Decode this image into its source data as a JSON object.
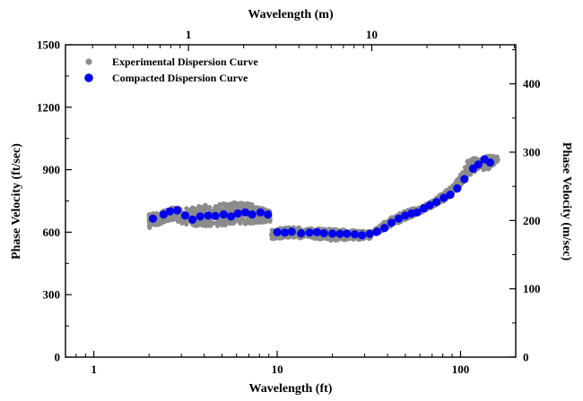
{
  "chart_data": {
    "type": "scatter",
    "x_scale": "log",
    "x_axis_bottom": {
      "label": "Wavelength (ft)",
      "range": [
        0.7,
        200
      ],
      "ticks": [
        1,
        10,
        100
      ],
      "tick_labels": [
        "1",
        "10",
        "100"
      ]
    },
    "x_axis_top": {
      "label": "Wavelength (m)",
      "ticks": [
        1,
        10
      ],
      "tick_labels": [
        "1",
        "10"
      ]
    },
    "y_axis_left": {
      "label": "Phase Velocity (ft/sec)",
      "range": [
        0,
        1500
      ],
      "ticks": [
        0,
        300,
        600,
        900,
        1200,
        1500
      ],
      "tick_labels": [
        "0",
        "300",
        "600",
        "900",
        "1200",
        "1500"
      ]
    },
    "y_axis_right": {
      "label": "Phase Velocity (m/sec)",
      "ticks": [
        0,
        100,
        200,
        300,
        400
      ],
      "tick_labels": [
        "0",
        "100",
        "200",
        "300",
        "400"
      ]
    },
    "grid": false,
    "legend_position": "top-left",
    "series": [
      {
        "name": "Experimental Dispersion Curve",
        "color": "#8c8c8c",
        "marker": "circle-small",
        "segments": [
          {
            "x_range": [
              2.0,
              9.2
            ],
            "band": [
              [
                2.0,
                620,
                690
              ],
              [
                2.3,
                640,
                700
              ],
              [
                2.7,
                660,
                720
              ],
              [
                3.0,
                640,
                720
              ],
              [
                3.5,
                630,
                720
              ],
              [
                4.0,
                630,
                730
              ],
              [
                5.0,
                630,
                740
              ],
              [
                6.0,
                640,
                745
              ],
              [
                7.0,
                640,
                740
              ],
              [
                8.0,
                645,
                720
              ],
              [
                9.2,
                650,
                700
              ]
            ]
          },
          {
            "x_range": [
              9.3,
              33
            ],
            "band": [
              [
                9.3,
                560,
                610
              ],
              [
                10,
                570,
                620
              ],
              [
                12,
                575,
                625
              ],
              [
                15,
                570,
                620
              ],
              [
                20,
                560,
                615
              ],
              [
                25,
                565,
                610
              ],
              [
                30,
                565,
                605
              ],
              [
                33,
                570,
                605
              ]
            ]
          },
          {
            "x_range": [
              34,
              160
            ],
            "band": [
              [
                34,
                585,
                615
              ],
              [
                40,
                620,
                660
              ],
              [
                50,
                660,
                705
              ],
              [
                60,
                690,
                720
              ],
              [
                70,
                720,
                750
              ],
              [
                80,
                745,
                790
              ],
              [
                90,
                780,
                820
              ],
              [
                100,
                820,
                880
              ],
              [
                110,
                870,
                945
              ],
              [
                125,
                900,
                965
              ],
              [
                140,
                900,
                965
              ],
              [
                160,
                940,
                970
              ]
            ]
          }
        ]
      },
      {
        "name": "Compacted Dispersion Curve",
        "color": "#0000ee",
        "marker": "circle-large",
        "points": [
          [
            2.1,
            665
          ],
          [
            2.4,
            685
          ],
          [
            2.6,
            700
          ],
          [
            2.85,
            705
          ],
          [
            3.15,
            680
          ],
          [
            3.45,
            660
          ],
          [
            3.8,
            675
          ],
          [
            4.2,
            680
          ],
          [
            4.6,
            678
          ],
          [
            5.1,
            685
          ],
          [
            5.6,
            675
          ],
          [
            6.1,
            690
          ],
          [
            6.7,
            695
          ],
          [
            7.3,
            685
          ],
          [
            8.1,
            695
          ],
          [
            8.9,
            685
          ],
          [
            10.0,
            600
          ],
          [
            11.0,
            598
          ],
          [
            12.0,
            602
          ],
          [
            13.5,
            595
          ],
          [
            15.0,
            598
          ],
          [
            16.5,
            600
          ],
          [
            18.0,
            595
          ],
          [
            20.0,
            593
          ],
          [
            22.0,
            592
          ],
          [
            24.0,
            593
          ],
          [
            26.5,
            590
          ],
          [
            29.0,
            585
          ],
          [
            32.0,
            592
          ],
          [
            35.0,
            602
          ],
          [
            38.5,
            620
          ],
          [
            42.0,
            645
          ],
          [
            46.0,
            665
          ],
          [
            50.0,
            680
          ],
          [
            54.0,
            690
          ],
          [
            58.0,
            695
          ],
          [
            63.0,
            715
          ],
          [
            68.0,
            730
          ],
          [
            74.0,
            745
          ],
          [
            81.0,
            765
          ],
          [
            88.0,
            780
          ],
          [
            96.0,
            810
          ],
          [
            105.0,
            855
          ],
          [
            117.0,
            905
          ],
          [
            125.0,
            925
          ],
          [
            135.0,
            950
          ],
          [
            145.0,
            935
          ]
        ]
      }
    ]
  }
}
